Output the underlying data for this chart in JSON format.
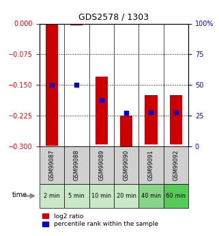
{
  "title": "GDS2578 / 1303",
  "samples": [
    "GSM99087",
    "GSM99088",
    "GSM99089",
    "GSM99090",
    "GSM99091",
    "GSM99092"
  ],
  "time_labels": [
    "2 min",
    "5 min",
    "10 min",
    "20 min",
    "40 min",
    "60 min"
  ],
  "log2_ratio": [
    -0.298,
    -0.005,
    -0.295,
    -0.302,
    -0.295,
    -0.295
  ],
  "log2_ratio_top": [
    0.0,
    0.0,
    -0.13,
    -0.225,
    -0.175,
    -0.175
  ],
  "percentile_rank": [
    50,
    50,
    38,
    27,
    28,
    28
  ],
  "ylim_left": [
    -0.3,
    0.0
  ],
  "ylim_right": [
    0,
    100
  ],
  "yticks_left": [
    0.0,
    -0.075,
    -0.15,
    -0.225,
    -0.3
  ],
  "yticks_right": [
    0,
    25,
    50,
    75,
    100
  ],
  "bar_color": "#cc0000",
  "dot_color": "#0000cc",
  "bg_gray": "#d0d0d0",
  "bg_green_light": [
    "#d4edda",
    "#d4edda",
    "#d4edda",
    "#d4edda",
    "#b2e6b2",
    "#b2e6b2"
  ],
  "time_colors": [
    "#c8e6c9",
    "#c8e6c9",
    "#c8e6c9",
    "#c8e6c9",
    "#88d488",
    "#66cc66"
  ],
  "legend_log2": "log2 ratio",
  "legend_pct": "percentile rank within the sample",
  "bar_width": 0.5
}
